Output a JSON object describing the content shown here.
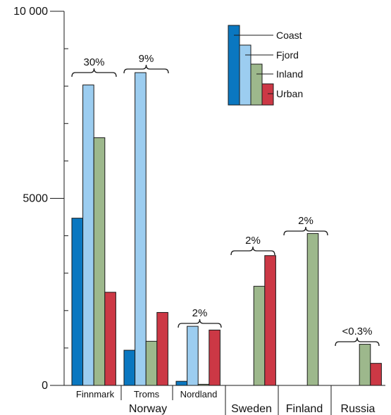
{
  "chart_data": {
    "type": "bar",
    "ylim": [
      0,
      10000
    ],
    "yticks": [
      {
        "value": 0,
        "label": "0"
      },
      {
        "value": 5000,
        "label": "5000"
      },
      {
        "value": 10000,
        "label": "10 000"
      }
    ],
    "minor_yticks": [
      1000,
      2000,
      3000,
      4000,
      6000,
      7000,
      8000,
      9000
    ],
    "series": [
      {
        "name": "Coast",
        "color": "#0a77c0"
      },
      {
        "name": "Fjord",
        "color": "#9ccdf0"
      },
      {
        "name": "Inland",
        "color": "#9db88c"
      },
      {
        "name": "Urban",
        "color": "#cc3845"
      }
    ],
    "categories": [
      {
        "label": "Finnmark",
        "values": [
          4470,
          8030,
          6620,
          2490
        ],
        "percent": "30%"
      },
      {
        "label": "Troms",
        "values": [
          940,
          8360,
          1180,
          1950
        ],
        "percent": "9%"
      },
      {
        "label": "Nordland",
        "values": [
          110,
          1580,
          30,
          1480
        ],
        "percent": "2%"
      },
      {
        "label": "Sweden",
        "values": [
          null,
          null,
          2650,
          3470
        ],
        "percent": "2%"
      },
      {
        "label": "Finland",
        "values": [
          null,
          null,
          4060,
          null
        ],
        "percent": "2%"
      },
      {
        "label": "Russia",
        "values": [
          null,
          null,
          1100,
          590
        ],
        "percent": "<0.3%"
      }
    ],
    "group_labels": [
      "Norway"
    ]
  }
}
